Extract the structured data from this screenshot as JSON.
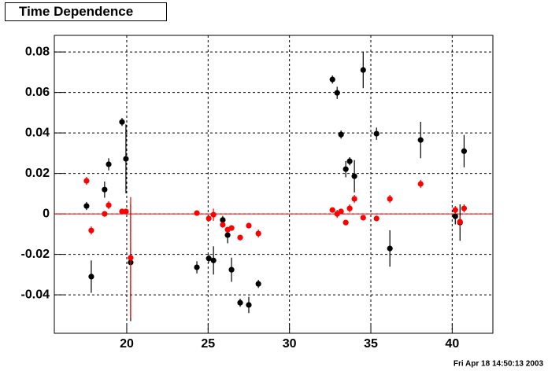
{
  "chart_data": {
    "type": "scatter",
    "title": "Time Dependence",
    "footer": "Fri Apr 18 14:50:13 2003",
    "xlim": [
      15.55,
      42.5
    ],
    "ylim": [
      -0.059,
      0.0882
    ],
    "xticks": [
      20,
      25,
      30,
      35,
      40
    ],
    "yticks": [
      -0.04,
      -0.02,
      0,
      0.02,
      0.04,
      0.06,
      0.08
    ],
    "grid": true,
    "hline": {
      "value": 0,
      "color": "#ff0000"
    },
    "series": [
      {
        "color": "#000000",
        "x": [
          17.53,
          17.82,
          18.64,
          18.89,
          19.71,
          19.95,
          20.24,
          24.31,
          25.04,
          25.33,
          25.9,
          26.2,
          26.44,
          26.97,
          27.5,
          28.09,
          32.64,
          32.93,
          33.17,
          33.46,
          33.7,
          33.99,
          34.53,
          35.35,
          36.17,
          38.06,
          40.19,
          40.48,
          40.73
        ],
        "values": [
          0.0039,
          -0.031,
          0.012,
          0.0245,
          0.0454,
          0.0272,
          -0.024,
          -0.0264,
          -0.022,
          -0.023,
          -0.003,
          -0.0105,
          -0.0276,
          -0.0439,
          -0.045,
          -0.0346,
          0.0664,
          0.0598,
          0.0392,
          0.0221,
          0.026,
          0.0186,
          0.0711,
          0.0396,
          -0.0171,
          0.0365,
          -0.0012,
          -0.0043,
          0.031
        ],
        "errors": [
          0.002,
          0.008,
          0.004,
          0.003,
          0.002,
          0.017,
          0.029,
          0.003,
          0.002,
          0.007,
          0.002,
          0.004,
          0.006,
          0.002,
          0.004,
          0.002,
          0.002,
          0.003,
          0.002,
          0.004,
          0.002,
          0.008,
          0.009,
          0.003,
          0.009,
          0.009,
          0.004,
          0.009,
          0.008
        ]
      },
      {
        "color": "#ff0000",
        "x": [
          17.53,
          17.82,
          18.64,
          18.89,
          19.71,
          19.95,
          20.24,
          24.31,
          25.04,
          25.33,
          25.9,
          26.2,
          26.44,
          26.97,
          27.5,
          28.09,
          32.64,
          32.93,
          33.17,
          33.46,
          33.7,
          33.99,
          34.53,
          35.35,
          36.17,
          38.06,
          40.19,
          40.48,
          40.73
        ],
        "values": [
          0.0163,
          -0.0082,
          0.0,
          0.0043,
          0.0012,
          0.0012,
          -0.0217,
          0.0004,
          -0.0023,
          -0.0004,
          -0.0054,
          -0.0078,
          -0.007,
          -0.0117,
          -0.0058,
          -0.0097,
          0.0019,
          0.0,
          0.0012,
          -0.0043,
          0.0027,
          0.0074,
          -0.0019,
          -0.0023,
          0.0074,
          0.0148,
          0.0019,
          -0.0039,
          0.0027
        ],
        "errors": [
          0.002,
          0.002,
          0.001,
          0.002,
          0.001,
          0.001,
          0.03,
          0.001,
          0.001,
          0.003,
          0.001,
          0.001,
          0.001,
          0.001,
          0.001,
          0.002,
          0.001,
          0.002,
          0.001,
          0.001,
          0.002,
          0.002,
          0.001,
          0.001,
          0.002,
          0.002,
          0.002,
          0.003,
          0.002
        ]
      }
    ]
  }
}
